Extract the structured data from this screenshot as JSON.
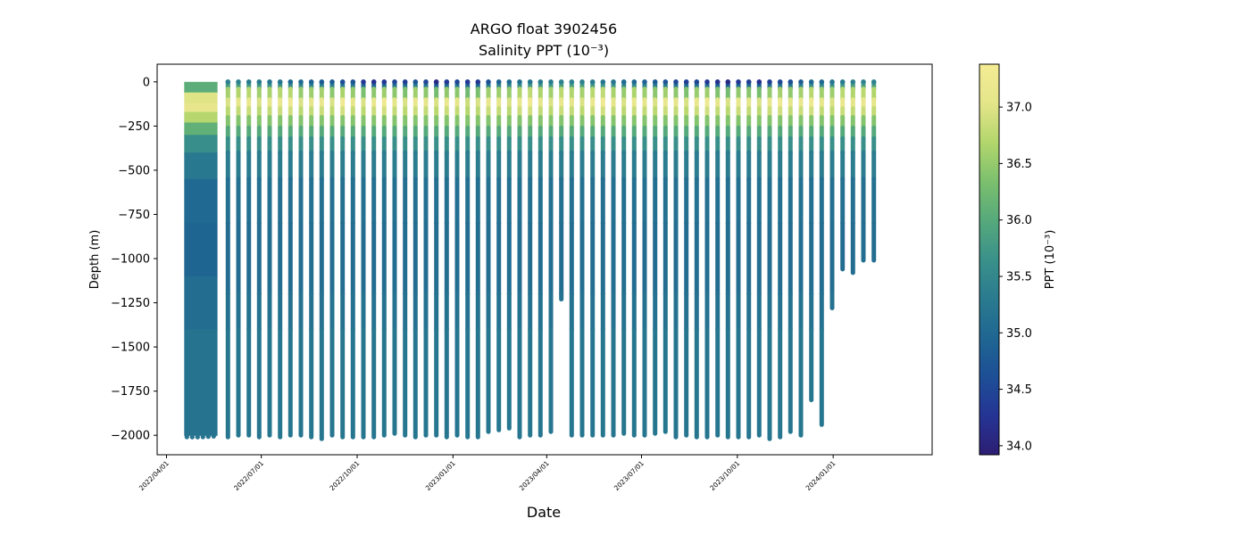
{
  "chart_data": {
    "type": "scatter",
    "title": "ARGO float 3902456",
    "subtitle": "Salinity PPT (10⁻³)",
    "xlabel": "Date",
    "ylabel": "Depth (m)",
    "xlim": [
      "2022-03-23",
      "2024-04-05"
    ],
    "ylim": [
      -2110,
      100
    ],
    "x_ticks": [
      "2022/04/01",
      "2022/07/01",
      "2022/10/01",
      "2023/01/01",
      "2023/04/01",
      "2023/07/01",
      "2023/10/01",
      "2024/01/01"
    ],
    "y_ticks": [
      0,
      -250,
      -500,
      -750,
      -1000,
      -1250,
      -1500,
      -1750,
      -2000
    ],
    "colorbar": {
      "label": "PPT (10⁻³)",
      "range": [
        33.92,
        37.38
      ],
      "ticks": [
        34.0,
        34.5,
        35.0,
        35.5,
        36.0,
        36.5,
        37.0
      ],
      "colormap": [
        "#2c1e73",
        "#253494",
        "#1d4f96",
        "#1f6692",
        "#2a7b8f",
        "#3a918a",
        "#56a97b",
        "#7cc06e",
        "#b3d66c",
        "#e4e58a",
        "#f4ec94"
      ]
    },
    "dense_period": {
      "start": "2022-04-18",
      "end": "2022-05-20",
      "max_depth": -2000
    },
    "profiles": {
      "dates": [
        "2022-05-30",
        "2022-06-09",
        "2022-06-19",
        "2022-06-29",
        "2022-07-09",
        "2022-07-19",
        "2022-07-29",
        "2022-08-08",
        "2022-08-18",
        "2022-08-28",
        "2022-09-07",
        "2022-09-17",
        "2022-09-27",
        "2022-10-07",
        "2022-10-17",
        "2022-10-27",
        "2022-11-06",
        "2022-11-16",
        "2022-11-26",
        "2022-12-06",
        "2022-12-16",
        "2022-12-26",
        "2023-01-05",
        "2023-01-15",
        "2023-01-25",
        "2023-02-04",
        "2023-02-14",
        "2023-02-24",
        "2023-03-06",
        "2023-03-16",
        "2023-03-26",
        "2023-04-05",
        "2023-04-15",
        "2023-04-25",
        "2023-05-05",
        "2023-05-15",
        "2023-05-25",
        "2023-06-04",
        "2023-06-14",
        "2023-06-24",
        "2023-07-04",
        "2023-07-14",
        "2023-07-24",
        "2023-08-03",
        "2023-08-13",
        "2023-08-23",
        "2023-09-02",
        "2023-09-12",
        "2023-09-22",
        "2023-10-02",
        "2023-10-12",
        "2023-10-22",
        "2023-11-01",
        "2023-11-11",
        "2023-11-21",
        "2023-12-01",
        "2023-12-11",
        "2023-12-21",
        "2023-12-31",
        "2024-01-10",
        "2024-01-20",
        "2024-01-30",
        "2024-02-09"
      ],
      "max_depths": [
        -2010,
        -2000,
        -2000,
        -2010,
        -2000,
        -2010,
        -2000,
        -2000,
        -2010,
        -2020,
        -2000,
        -2010,
        -2010,
        -2010,
        -2010,
        -2000,
        -1990,
        -2000,
        -2010,
        -2000,
        -2000,
        -2010,
        -2000,
        -2010,
        -2010,
        -1980,
        -1970,
        -1960,
        -2010,
        -2000,
        -2000,
        -1980,
        -1230,
        -2000,
        -2000,
        -2000,
        -2000,
        -2000,
        -1990,
        -2000,
        -2000,
        -1990,
        -1980,
        -2010,
        -2000,
        -2010,
        -2010,
        -2000,
        -2010,
        -2010,
        -2010,
        -2000,
        -2020,
        -2010,
        -1980,
        -2000,
        -1800,
        -1940,
        -1280,
        -1060,
        -1080,
        -1010,
        -1010
      ],
      "surface_salinity": [
        35.4,
        35.4,
        35.3,
        35.3,
        35.2,
        35.2,
        35.0,
        35.0,
        34.9,
        34.8,
        34.8,
        34.6,
        34.7,
        34.3,
        34.2,
        34.3,
        34.5,
        34.4,
        34.7,
        34.5,
        34.1,
        34.3,
        34.5,
        34.3,
        34.3,
        34.6,
        34.9,
        35.0,
        35.1,
        35.2,
        35.3,
        35.3,
        35.4,
        35.4,
        35.4,
        35.3,
        35.2,
        35.2,
        35.0,
        35.0,
        34.9,
        34.8,
        34.7,
        34.5,
        34.4,
        34.5,
        34.3,
        34.2,
        34.1,
        34.3,
        34.4,
        34.2,
        34.4,
        34.5,
        34.6,
        34.8,
        35.0,
        35.0,
        35.2,
        35.3,
        35.4,
        35.4,
        35.4
      ],
      "max_salinity": [
        37.0,
        37.1,
        37.2,
        37.0,
        37.1,
        37.2,
        37.3,
        37.0,
        37.1,
        37.2,
        37.0,
        37.3,
        37.1,
        37.0,
        37.2,
        37.3,
        37.1,
        37.0,
        37.2,
        37.1,
        37.0,
        37.2,
        37.1,
        36.9,
        37.0,
        37.2,
        37.1,
        37.0,
        37.2,
        37.3,
        37.1,
        37.0,
        37.2,
        37.1,
        37.0,
        37.2,
        37.3,
        37.1,
        37.0,
        37.2,
        37.1,
        37.0,
        37.2,
        37.1,
        37.0,
        37.2,
        37.3,
        37.1,
        37.0,
        37.2,
        37.1,
        37.0,
        37.2,
        37.3,
        37.1,
        37.2,
        37.3,
        37.1,
        37.0,
        37.2,
        37.1,
        37.2,
        37.1
      ]
    }
  }
}
